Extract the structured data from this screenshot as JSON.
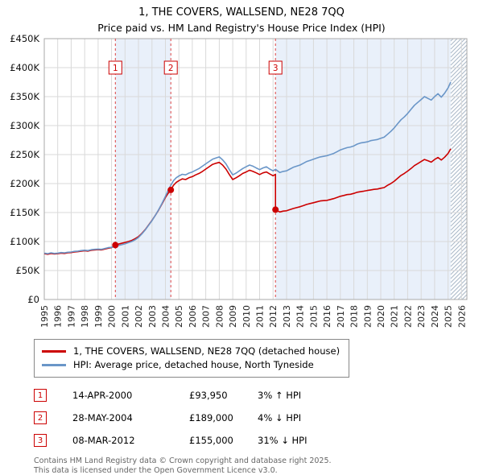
{
  "title": "1, THE COVERS, WALLSEND, NE28 7QQ",
  "subtitle": "Price paid vs. HM Land Registry's House Price Index (HPI)",
  "chart_data": {
    "type": "line",
    "title": "1, THE COVERS, WALLSEND, NE28 7QQ",
    "subtitle": "Price paid vs. HM Land Registry's House Price Index (HPI)",
    "x_range": [
      1995,
      2026.4
    ],
    "ylim": [
      0,
      450000
    ],
    "y_ticks": [
      "£0",
      "£50K",
      "£100K",
      "£150K",
      "£200K",
      "£250K",
      "£300K",
      "£350K",
      "£400K",
      "£450K"
    ],
    "y_tick_values": [
      0,
      50000,
      100000,
      150000,
      200000,
      250000,
      300000,
      350000,
      400000,
      450000
    ],
    "x_ticks": [
      1995,
      1996,
      1997,
      1998,
      1999,
      2000,
      2001,
      2002,
      2003,
      2004,
      2005,
      2006,
      2007,
      2008,
      2009,
      2010,
      2011,
      2012,
      2013,
      2014,
      2015,
      2016,
      2017,
      2018,
      2019,
      2020,
      2021,
      2022,
      2023,
      2024,
      2025,
      2026
    ],
    "bands": [
      [
        2000.28,
        2004.4
      ],
      [
        2012.18,
        2025.2
      ]
    ],
    "hatch_start": 2025.2,
    "colors": {
      "red": "#cc0000",
      "blue": "#6a96c8",
      "band": "#e9f0fa",
      "grid": "#d9d9d9",
      "dashed": "#dd4444",
      "border": "#aaaaaa",
      "hatch": "#aab8c8"
    },
    "sales": [
      {
        "n": "1",
        "year": 2000.28,
        "price": 93950,
        "date": "14-APR-2000",
        "price_label": "£93,950",
        "hpi_label": "3% ↑ HPI"
      },
      {
        "n": "2",
        "year": 2004.4,
        "price": 189000,
        "date": "28-MAY-2004",
        "price_label": "£189,000",
        "hpi_label": "4% ↓ HPI"
      },
      {
        "n": "3",
        "year": 2012.18,
        "price": 155000,
        "date": "08-MAR-2012",
        "price_label": "£155,000",
        "hpi_label": "31% ↓ HPI"
      }
    ],
    "series": [
      {
        "name": "1, THE COVERS, WALLSEND, NE28 7QQ (detached house)",
        "color": "#cc0000",
        "points": [
          [
            1995.0,
            79000
          ],
          [
            1995.25,
            78000
          ],
          [
            1995.5,
            79500
          ],
          [
            1995.75,
            78500
          ],
          [
            1996.0,
            79000
          ],
          [
            1996.25,
            80000
          ],
          [
            1996.5,
            79500
          ],
          [
            1996.75,
            80500
          ],
          [
            1997.0,
            81000
          ],
          [
            1997.25,
            82000
          ],
          [
            1997.5,
            82500
          ],
          [
            1997.75,
            83500
          ],
          [
            1998.0,
            84000
          ],
          [
            1998.25,
            83500
          ],
          [
            1998.5,
            85000
          ],
          [
            1998.75,
            85500
          ],
          [
            1999.0,
            86000
          ],
          [
            1999.25,
            85500
          ],
          [
            1999.5,
            87000
          ],
          [
            1999.75,
            88500
          ],
          [
            2000.0,
            89500
          ],
          [
            2000.28,
            93950
          ],
          [
            2000.5,
            95500
          ],
          [
            2000.75,
            97000
          ],
          [
            2001.0,
            98500
          ],
          [
            2001.25,
            100000
          ],
          [
            2001.5,
            102000
          ],
          [
            2001.75,
            105000
          ],
          [
            2002.0,
            108500
          ],
          [
            2002.25,
            114000
          ],
          [
            2002.5,
            120500
          ],
          [
            2002.75,
            128500
          ],
          [
            2003.0,
            136500
          ],
          [
            2003.25,
            145000
          ],
          [
            2003.5,
            154500
          ],
          [
            2003.75,
            165000
          ],
          [
            2004.0,
            176000
          ],
          [
            2004.2,
            183000
          ],
          [
            2004.4,
            189000
          ],
          [
            2004.6,
            197000
          ],
          [
            2004.8,
            202000
          ],
          [
            2005.0,
            205000
          ],
          [
            2005.25,
            208000
          ],
          [
            2005.5,
            207000
          ],
          [
            2005.75,
            210000
          ],
          [
            2006.0,
            212000
          ],
          [
            2006.25,
            215000
          ],
          [
            2006.5,
            217500
          ],
          [
            2006.75,
            221000
          ],
          [
            2007.0,
            225000
          ],
          [
            2007.25,
            229000
          ],
          [
            2007.5,
            233000
          ],
          [
            2007.75,
            235000
          ],
          [
            2008.0,
            236500
          ],
          [
            2008.25,
            232000
          ],
          [
            2008.5,
            225000
          ],
          [
            2008.75,
            215500
          ],
          [
            2009.0,
            207000
          ],
          [
            2009.25,
            210000
          ],
          [
            2009.5,
            213500
          ],
          [
            2009.75,
            217500
          ],
          [
            2010.0,
            220000
          ],
          [
            2010.25,
            223000
          ],
          [
            2010.5,
            221000
          ],
          [
            2010.75,
            218500
          ],
          [
            2011.0,
            215500
          ],
          [
            2011.25,
            218500
          ],
          [
            2011.5,
            220000
          ],
          [
            2011.75,
            216500
          ],
          [
            2012.0,
            213500
          ],
          [
            2012.18,
            216000
          ],
          [
            2012.18,
            155000
          ],
          [
            2012.5,
            151000
          ],
          [
            2012.75,
            152500
          ],
          [
            2013.0,
            153000
          ],
          [
            2013.25,
            155000
          ],
          [
            2013.5,
            157000
          ],
          [
            2013.75,
            158500
          ],
          [
            2014.0,
            160000
          ],
          [
            2014.25,
            162000
          ],
          [
            2014.5,
            164000
          ],
          [
            2014.75,
            165500
          ],
          [
            2015.0,
            167000
          ],
          [
            2015.25,
            168500
          ],
          [
            2015.5,
            170000
          ],
          [
            2015.75,
            170500
          ],
          [
            2016.0,
            171000
          ],
          [
            2016.25,
            172500
          ],
          [
            2016.5,
            174000
          ],
          [
            2016.75,
            176000
          ],
          [
            2017.0,
            178000
          ],
          [
            2017.25,
            179500
          ],
          [
            2017.5,
            181000
          ],
          [
            2017.75,
            181500
          ],
          [
            2018.0,
            183000
          ],
          [
            2018.25,
            185000
          ],
          [
            2018.5,
            186000
          ],
          [
            2018.75,
            187000
          ],
          [
            2019.0,
            188000
          ],
          [
            2019.25,
            189000
          ],
          [
            2019.5,
            190000
          ],
          [
            2019.75,
            190500
          ],
          [
            2020.0,
            192000
          ],
          [
            2020.25,
            193000
          ],
          [
            2020.5,
            197000
          ],
          [
            2020.75,
            200000
          ],
          [
            2021.0,
            204000
          ],
          [
            2021.25,
            209000
          ],
          [
            2021.5,
            214000
          ],
          [
            2021.75,
            217500
          ],
          [
            2022.0,
            221500
          ],
          [
            2022.25,
            226000
          ],
          [
            2022.5,
            231000
          ],
          [
            2022.75,
            234500
          ],
          [
            2023.0,
            238000
          ],
          [
            2023.25,
            241500
          ],
          [
            2023.5,
            239500
          ],
          [
            2023.75,
            237000
          ],
          [
            2024.0,
            241500
          ],
          [
            2024.25,
            245000
          ],
          [
            2024.5,
            240500
          ],
          [
            2024.75,
            245500
          ],
          [
            2025.0,
            252000
          ],
          [
            2025.2,
            260000
          ]
        ]
      },
      {
        "name": "HPI: Average price, detached house, North Tyneside",
        "color": "#6a96c8",
        "points": [
          [
            1995.0,
            80000
          ],
          [
            1995.25,
            79000
          ],
          [
            1995.5,
            80500
          ],
          [
            1995.75,
            79500
          ],
          [
            1996.0,
            80000
          ],
          [
            1996.25,
            81000
          ],
          [
            1996.5,
            80500
          ],
          [
            1996.75,
            81500
          ],
          [
            1997.0,
            82000
          ],
          [
            1997.25,
            83000
          ],
          [
            1997.5,
            83500
          ],
          [
            1997.75,
            84500
          ],
          [
            1998.0,
            85000
          ],
          [
            1998.25,
            84500
          ],
          [
            1998.5,
            86000
          ],
          [
            1998.75,
            86500
          ],
          [
            1999.0,
            87000
          ],
          [
            1999.25,
            86500
          ],
          [
            1999.5,
            88000
          ],
          [
            1999.75,
            89500
          ],
          [
            2000.0,
            90000
          ],
          [
            2000.28,
            91200
          ],
          [
            2000.5,
            93000
          ],
          [
            2000.75,
            94500
          ],
          [
            2001.0,
            96000
          ],
          [
            2001.25,
            98000
          ],
          [
            2001.5,
            100000
          ],
          [
            2001.75,
            103000
          ],
          [
            2002.0,
            107000
          ],
          [
            2002.25,
            113000
          ],
          [
            2002.5,
            120000
          ],
          [
            2002.75,
            128000
          ],
          [
            2003.0,
            136000
          ],
          [
            2003.25,
            145000
          ],
          [
            2003.5,
            155000
          ],
          [
            2003.75,
            166000
          ],
          [
            2004.0,
            178000
          ],
          [
            2004.2,
            188000
          ],
          [
            2004.4,
            197000
          ],
          [
            2004.6,
            205000
          ],
          [
            2004.8,
            210000
          ],
          [
            2005.0,
            213000
          ],
          [
            2005.25,
            216000
          ],
          [
            2005.5,
            215000
          ],
          [
            2005.75,
            218000
          ],
          [
            2006.0,
            220000
          ],
          [
            2006.25,
            223000
          ],
          [
            2006.5,
            226000
          ],
          [
            2006.75,
            230000
          ],
          [
            2007.0,
            234000
          ],
          [
            2007.25,
            238000
          ],
          [
            2007.5,
            242000
          ],
          [
            2007.75,
            244000
          ],
          [
            2008.0,
            246000
          ],
          [
            2008.25,
            241000
          ],
          [
            2008.5,
            234000
          ],
          [
            2008.75,
            224000
          ],
          [
            2009.0,
            215000
          ],
          [
            2009.25,
            218000
          ],
          [
            2009.5,
            222000
          ],
          [
            2009.75,
            226000
          ],
          [
            2010.0,
            229000
          ],
          [
            2010.25,
            232000
          ],
          [
            2010.5,
            230000
          ],
          [
            2010.75,
            227000
          ],
          [
            2011.0,
            224000
          ],
          [
            2011.25,
            227000
          ],
          [
            2011.5,
            229000
          ],
          [
            2011.75,
            225000
          ],
          [
            2012.0,
            222000
          ],
          [
            2012.18,
            224600
          ],
          [
            2012.5,
            219000
          ],
          [
            2012.75,
            221000
          ],
          [
            2013.0,
            222000
          ],
          [
            2013.25,
            225000
          ],
          [
            2013.5,
            228000
          ],
          [
            2013.75,
            230000
          ],
          [
            2014.0,
            232000
          ],
          [
            2014.25,
            235000
          ],
          [
            2014.5,
            238000
          ],
          [
            2014.75,
            240000
          ],
          [
            2015.0,
            242000
          ],
          [
            2015.25,
            244000
          ],
          [
            2015.5,
            246000
          ],
          [
            2015.75,
            247000
          ],
          [
            2016.0,
            248000
          ],
          [
            2016.25,
            250000
          ],
          [
            2016.5,
            252000
          ],
          [
            2016.75,
            255000
          ],
          [
            2017.0,
            258000
          ],
          [
            2017.25,
            260000
          ],
          [
            2017.5,
            262000
          ],
          [
            2017.75,
            263000
          ],
          [
            2018.0,
            265000
          ],
          [
            2018.25,
            268000
          ],
          [
            2018.5,
            270000
          ],
          [
            2018.75,
            271000
          ],
          [
            2019.0,
            272000
          ],
          [
            2019.25,
            274000
          ],
          [
            2019.5,
            275000
          ],
          [
            2019.75,
            276000
          ],
          [
            2020.0,
            278000
          ],
          [
            2020.25,
            280000
          ],
          [
            2020.5,
            285000
          ],
          [
            2020.75,
            290000
          ],
          [
            2021.0,
            296000
          ],
          [
            2021.25,
            303000
          ],
          [
            2021.5,
            310000
          ],
          [
            2021.75,
            315000
          ],
          [
            2022.0,
            321000
          ],
          [
            2022.25,
            328000
          ],
          [
            2022.5,
            335000
          ],
          [
            2022.75,
            340000
          ],
          [
            2023.0,
            345000
          ],
          [
            2023.25,
            350000
          ],
          [
            2023.5,
            347000
          ],
          [
            2023.75,
            344000
          ],
          [
            2024.0,
            350000
          ],
          [
            2024.25,
            355000
          ],
          [
            2024.5,
            349000
          ],
          [
            2024.75,
            356000
          ],
          [
            2025.0,
            365000
          ],
          [
            2025.2,
            375000
          ]
        ]
      }
    ]
  },
  "legend": {
    "items": [
      {
        "label": "1, THE COVERS, WALLSEND, NE28 7QQ (detached house)",
        "color": "#cc0000"
      },
      {
        "label": "HPI: Average price, detached house, North Tyneside",
        "color": "#6a96c8"
      }
    ]
  },
  "transactions": [
    {
      "num": "1",
      "date": "14-APR-2000",
      "price": "£93,950",
      "delta": "3% ↑ HPI"
    },
    {
      "num": "2",
      "date": "28-MAY-2004",
      "price": "£189,000",
      "delta": "4% ↓ HPI"
    },
    {
      "num": "3",
      "date": "08-MAR-2012",
      "price": "£155,000",
      "delta": "31% ↓ HPI"
    }
  ],
  "footer": [
    "Contains HM Land Registry data © Crown copyright and database right 2025.",
    "This data is licensed under the Open Government Licence v3.0."
  ]
}
